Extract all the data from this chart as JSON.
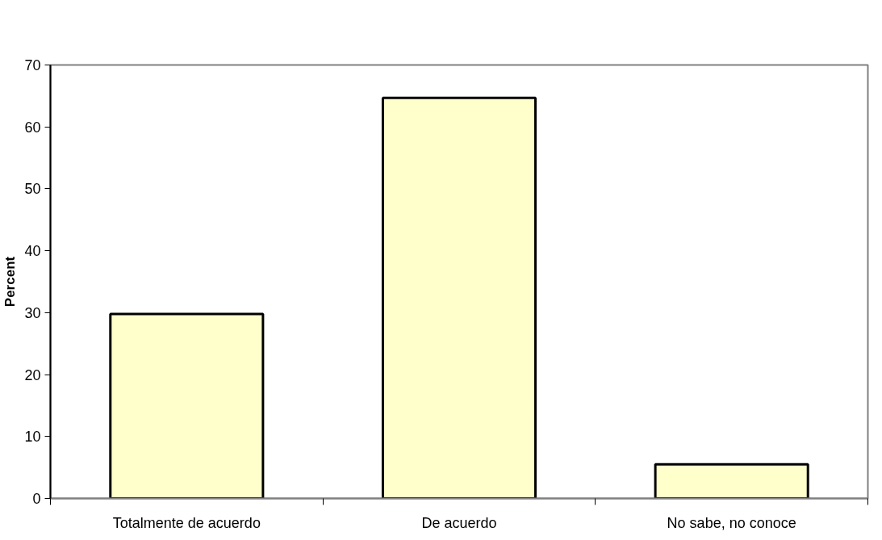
{
  "chart_data": {
    "type": "bar",
    "ylabel": "Percent",
    "categories": [
      "Totalmente de acuerdo",
      "De acuerdo",
      "No sabe, no conoce"
    ],
    "values": [
      29.8,
      64.7,
      5.5
    ],
    "color": "#ffffcc",
    "ylim": [
      0,
      70
    ],
    "yticks": [
      0,
      10,
      20,
      30,
      40,
      50,
      60,
      70
    ],
    "grid": false
  }
}
